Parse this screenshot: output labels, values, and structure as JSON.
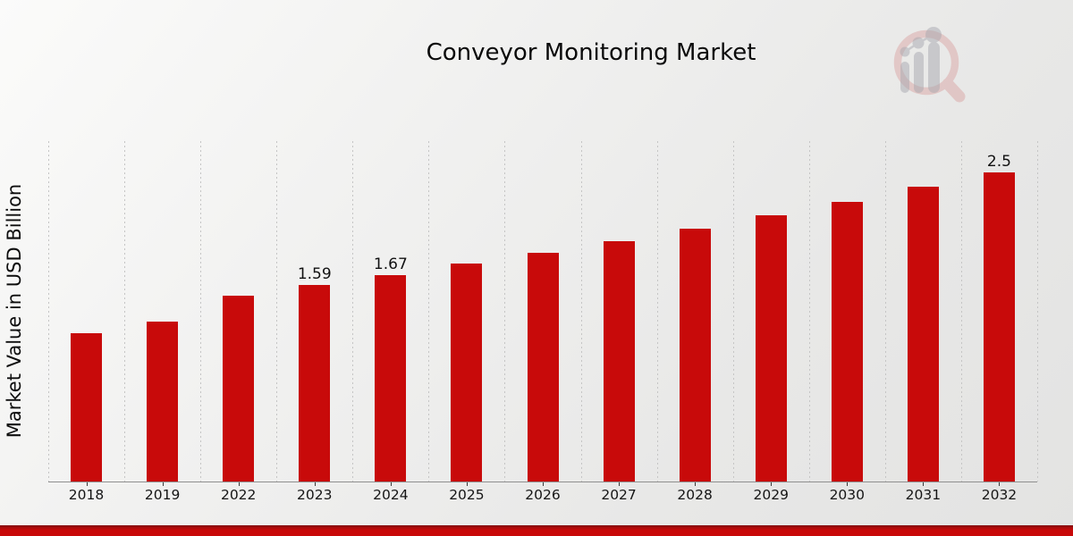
{
  "chart_data": {
    "type": "bar",
    "title": "Conveyor Monitoring Market",
    "categories": [
      "2018",
      "2019",
      "2022",
      "2023",
      "2024",
      "2025",
      "2026",
      "2027",
      "2028",
      "2029",
      "2030",
      "2031",
      "2032"
    ],
    "values": [
      1.2,
      1.29,
      1.5,
      1.59,
      1.67,
      1.76,
      1.85,
      1.94,
      2.04,
      2.15,
      2.26,
      2.38,
      2.5
    ],
    "bar_labels": [
      "",
      "",
      "",
      "1.59",
      "1.67",
      "",
      "",
      "",
      "",
      "",
      "",
      "",
      "2.5"
    ],
    "xlabel": "",
    "ylabel": "Market Value in USD Billion",
    "ylim": [
      0,
      2.75
    ],
    "grid": "vertical-dashed",
    "legend": "none",
    "bar_color": "#c80a0a",
    "value_label_color": "#111111",
    "tick_label_color": "#151515",
    "axis_color": "#8f8f8f",
    "grid_color": "#c5c5c5"
  },
  "footer": {
    "band_color_dark": "#7d0a0e",
    "band_color_bright": "#c80808"
  },
  "watermark": {
    "icon": "magnifier-bar-chart-logo",
    "ring_color": "#cf7a7a",
    "bars_color": "#a9a9b0"
  }
}
